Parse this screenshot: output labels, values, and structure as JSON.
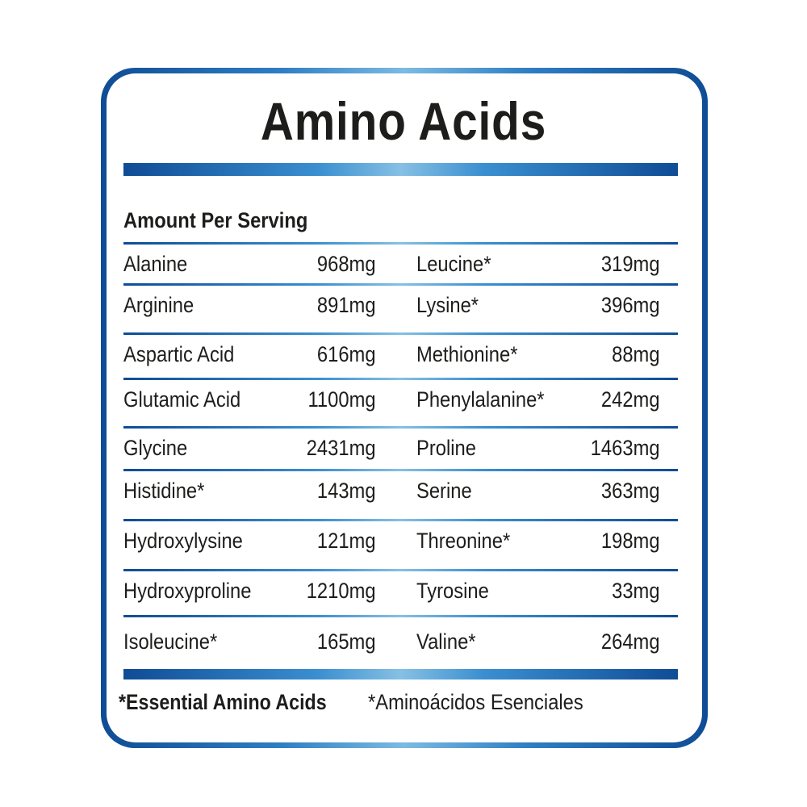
{
  "title": "Amino Acids",
  "subtitle": "Amount Per Serving",
  "colors": {
    "border_dark": "#0f4c95",
    "border_light": "#86c0e4",
    "text": "#1d1d1b"
  },
  "rows": [
    {
      "left_name": "Alanine",
      "left_value": "968mg",
      "right_name": "Leucine*",
      "right_value": "319mg"
    },
    {
      "left_name": "Arginine",
      "left_value": "891mg",
      "right_name": "Lysine*",
      "right_value": "396mg"
    },
    {
      "left_name": "Aspartic Acid",
      "left_value": "616mg",
      "right_name": "Methionine*",
      "right_value": "88mg"
    },
    {
      "left_name": "Glutamic Acid",
      "left_value": "1100mg",
      "right_name": "Phenylalanine*",
      "right_value": "242mg"
    },
    {
      "left_name": "Glycine",
      "left_value": "2431mg",
      "right_name": "Proline",
      "right_value": "1463mg"
    },
    {
      "left_name": "Histidine*",
      "left_value": "143mg",
      "right_name": "Serine",
      "right_value": "363mg"
    },
    {
      "left_name": "Hydroxylysine",
      "left_value": "121mg",
      "right_name": "Threonine*",
      "right_value": "198mg"
    },
    {
      "left_name": "Hydroxyproline",
      "left_value": "1210mg",
      "right_name": "Tyrosine",
      "right_value": "33mg"
    },
    {
      "left_name": "Isoleucine*",
      "left_value": "165mg",
      "right_name": "Valine*",
      "right_value": "264mg"
    }
  ],
  "footnote_en": "*Essential Amino Acids",
  "footnote_es": "*Aminoácidos Esenciales"
}
